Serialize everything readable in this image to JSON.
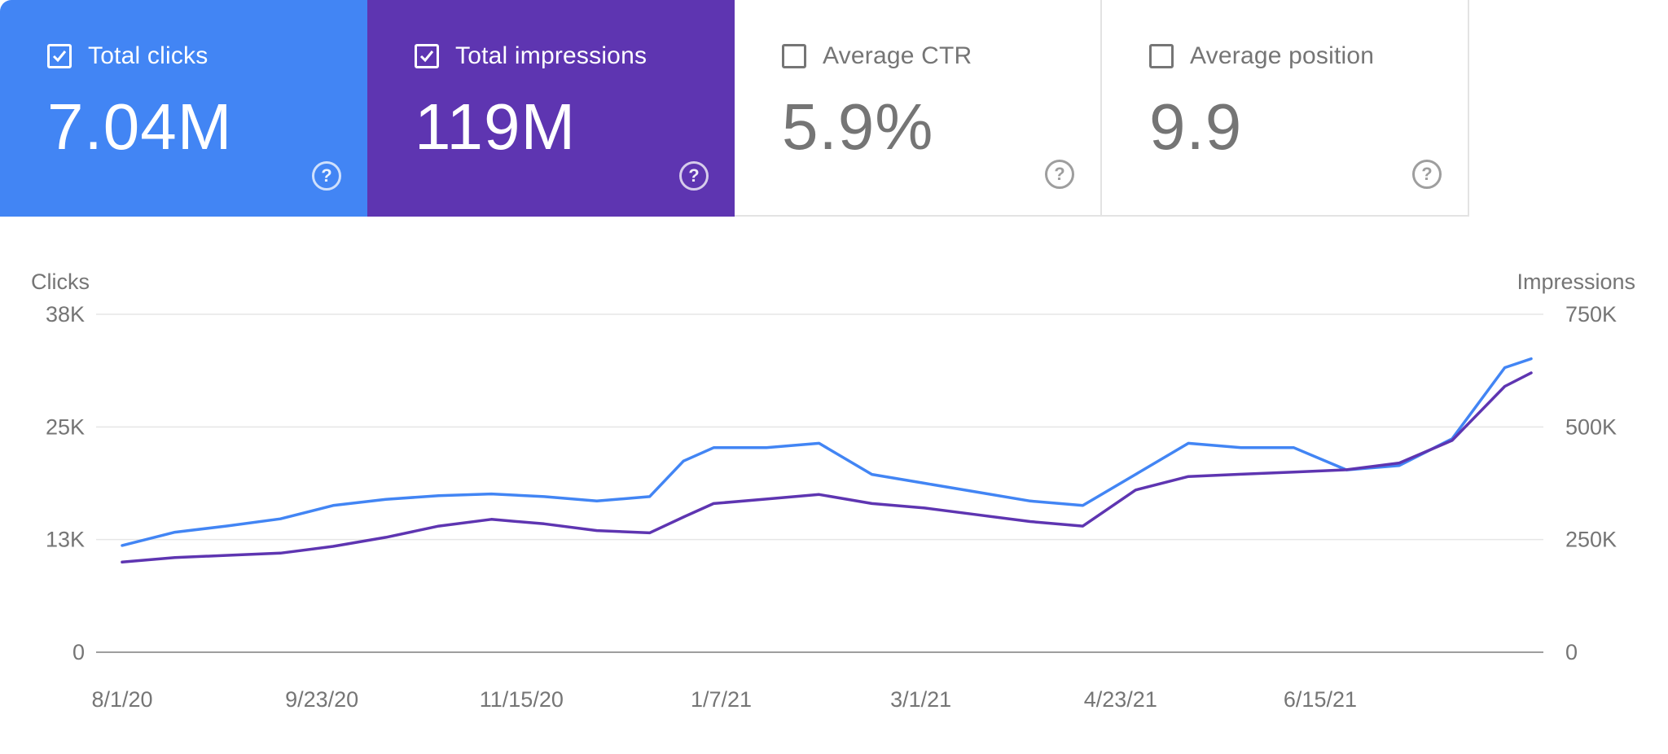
{
  "metrics": {
    "clicks": {
      "label": "Total clicks",
      "value": "7.04M",
      "checked": true,
      "color": "#4285f4"
    },
    "impressions": {
      "label": "Total impressions",
      "value": "119M",
      "checked": true,
      "color": "#5e35b1"
    },
    "ctr": {
      "label": "Average CTR",
      "value": "5.9%",
      "checked": false
    },
    "position": {
      "label": "Average position",
      "value": "9.9",
      "checked": false
    }
  },
  "help_glyph": "?",
  "chart_data": {
    "type": "line",
    "left_axis": {
      "label": "Clicks",
      "ticks": [
        "0",
        "13K",
        "25K",
        "38K"
      ],
      "ylim": [
        0,
        38000
      ]
    },
    "right_axis": {
      "label": "Impressions",
      "ticks": [
        "0",
        "250K",
        "500K",
        "750K"
      ],
      "ylim": [
        0,
        750000
      ]
    },
    "x_ticks": [
      "8/1/20",
      "9/23/20",
      "11/15/20",
      "1/7/21",
      "3/1/21",
      "4/23/21",
      "6/15/21"
    ],
    "grid": true,
    "series": [
      {
        "name": "Clicks",
        "axis": "left",
        "color": "#4285f4",
        "points": [
          [
            "8/1/20",
            12000
          ],
          [
            "8/15/20",
            13500
          ],
          [
            "8/29/20",
            14200
          ],
          [
            "9/12/20",
            15000
          ],
          [
            "9/26/20",
            16500
          ],
          [
            "10/10/20",
            17200
          ],
          [
            "10/24/20",
            17600
          ],
          [
            "11/7/20",
            17800
          ],
          [
            "11/21/20",
            17500
          ],
          [
            "12/5/20",
            17000
          ],
          [
            "12/19/20",
            17500
          ],
          [
            "12/28/20",
            21500
          ],
          [
            "1/5/21",
            23000
          ],
          [
            "1/19/21",
            23000
          ],
          [
            "2/2/21",
            23500
          ],
          [
            "2/16/21",
            20000
          ],
          [
            "3/2/21",
            19000
          ],
          [
            "3/16/21",
            18000
          ],
          [
            "3/30/21",
            17000
          ],
          [
            "4/13/21",
            16500
          ],
          [
            "4/27/21",
            20000
          ],
          [
            "5/11/21",
            23500
          ],
          [
            "5/25/21",
            23000
          ],
          [
            "6/8/21",
            23000
          ],
          [
            "6/22/21",
            20500
          ],
          [
            "7/6/21",
            21000
          ],
          [
            "7/20/21",
            24000
          ],
          [
            "8/3/21",
            32000
          ],
          [
            "8/10/21",
            33000
          ]
        ]
      },
      {
        "name": "Impressions",
        "axis": "right",
        "color": "#5e35b1",
        "points": [
          [
            "8/1/20",
            200000
          ],
          [
            "8/15/20",
            210000
          ],
          [
            "8/29/20",
            215000
          ],
          [
            "9/12/20",
            220000
          ],
          [
            "9/26/20",
            235000
          ],
          [
            "10/10/20",
            255000
          ],
          [
            "10/24/20",
            280000
          ],
          [
            "11/7/20",
            295000
          ],
          [
            "11/21/20",
            285000
          ],
          [
            "12/5/20",
            270000
          ],
          [
            "12/19/20",
            265000
          ],
          [
            "12/28/20",
            300000
          ],
          [
            "1/5/21",
            330000
          ],
          [
            "1/19/21",
            340000
          ],
          [
            "2/2/21",
            350000
          ],
          [
            "2/16/21",
            330000
          ],
          [
            "3/2/21",
            320000
          ],
          [
            "3/16/21",
            305000
          ],
          [
            "3/30/21",
            290000
          ],
          [
            "4/13/21",
            280000
          ],
          [
            "4/27/21",
            360000
          ],
          [
            "5/11/21",
            390000
          ],
          [
            "5/25/21",
            395000
          ],
          [
            "6/8/21",
            400000
          ],
          [
            "6/22/21",
            405000
          ],
          [
            "7/6/21",
            420000
          ],
          [
            "7/20/21",
            470000
          ],
          [
            "8/3/21",
            590000
          ],
          [
            "8/10/21",
            620000
          ]
        ]
      }
    ]
  }
}
